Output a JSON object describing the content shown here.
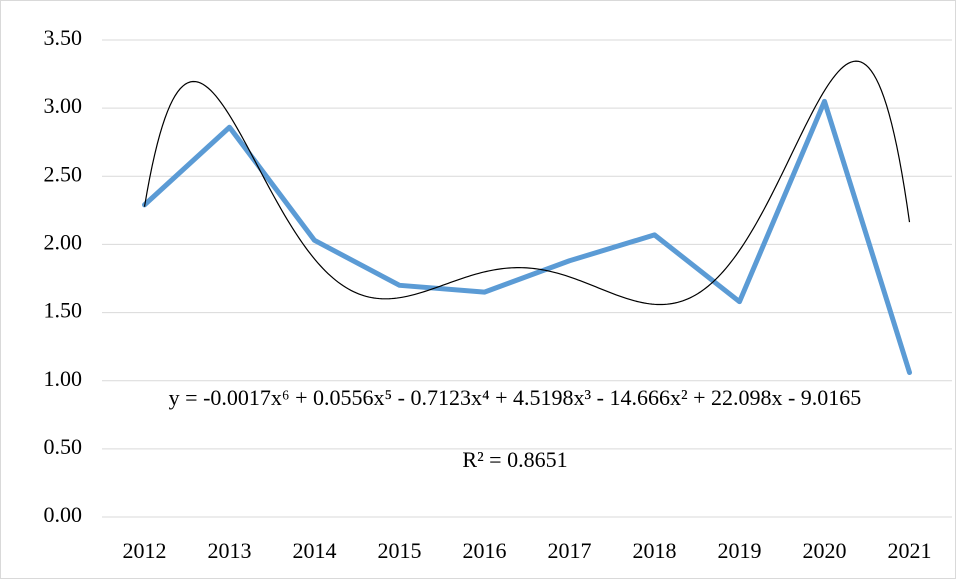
{
  "chart_data": {
    "type": "line",
    "categories": [
      "2012",
      "2013",
      "2014",
      "2015",
      "2016",
      "2017",
      "2018",
      "2019",
      "2020",
      "2021"
    ],
    "series": [
      {
        "color": "#5b9bd5",
        "values": [
          2.29,
          2.86,
          2.03,
          1.7,
          1.65,
          1.88,
          2.07,
          1.58,
          3.05,
          1.06
        ]
      }
    ],
    "ylim": [
      0,
      3.5
    ],
    "yticks": [
      {
        "value": 0,
        "label": "0.00"
      },
      {
        "value": 0.5,
        "label": "0.50"
      },
      {
        "value": 1,
        "label": "1.00"
      },
      {
        "value": 1.5,
        "label": "1.50"
      },
      {
        "value": 2,
        "label": "2.00"
      },
      {
        "value": 2.5,
        "label": "2.50"
      },
      {
        "value": 3,
        "label": "3.00"
      },
      {
        "value": 3.5,
        "label": "3.50"
      }
    ],
    "grid": true,
    "trendline": {
      "type": "polynomial",
      "color": "#000000",
      "coefficients": [
        -0.0017,
        0.0556,
        -0.7123,
        4.5198,
        -14.666,
        22.098,
        -9.0165
      ],
      "equation": "y = -0.0017x⁶ + 0.0556x⁵ - 0.7123x⁴ + 4.5198x³ - 14.666x² + 22.098x - 9.0165",
      "r_squared": "R² = 0.8651"
    }
  }
}
